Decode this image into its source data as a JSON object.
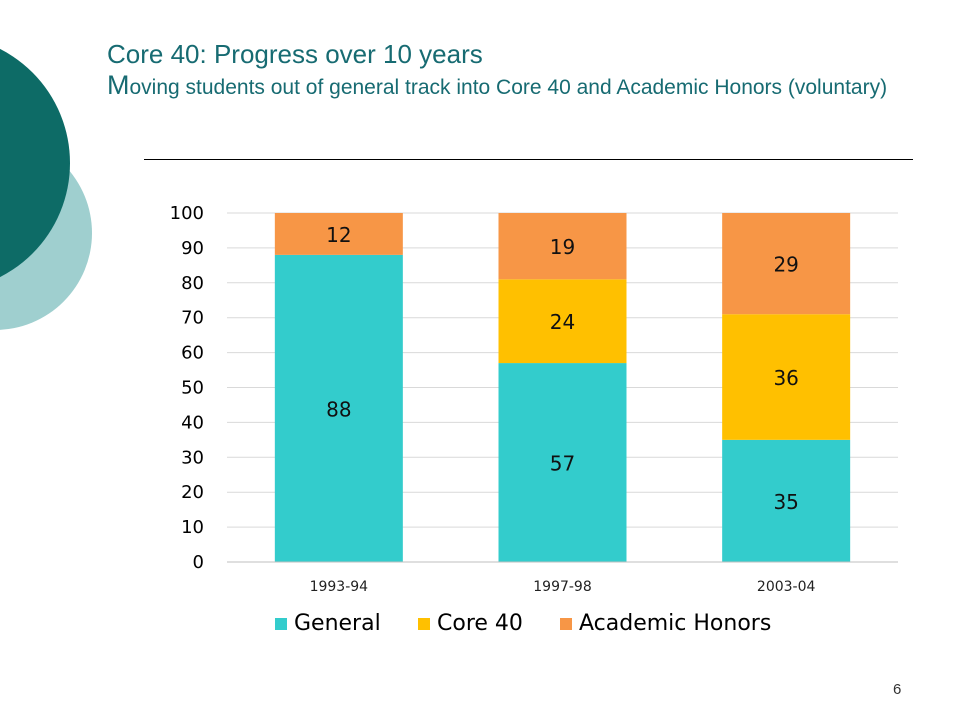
{
  "slide": {
    "title": "Core 40: Progress over 10 years",
    "subtitle_first": "M",
    "subtitle_rest": "oving students out of general track into Core 40 and Academic Honors  (voluntary)",
    "page_number": "6"
  },
  "colors": {
    "title": "#176b72",
    "decor_dark": "#0d6b66",
    "decor_light": "#9fcfcf"
  },
  "chart_data": {
    "type": "bar",
    "stacked": true,
    "categories": [
      "1993-94",
      "1997-98",
      "2003-04"
    ],
    "series": [
      {
        "name": "General",
        "color": "#33cccc",
        "values": [
          88,
          57,
          35
        ]
      },
      {
        "name": "Core 40",
        "color": "#ffc000",
        "values": [
          0,
          24,
          36
        ]
      },
      {
        "name": "Academic Honors",
        "color": "#f79646",
        "values": [
          12,
          19,
          29
        ]
      }
    ],
    "yticks": [
      "0",
      "10",
      "20",
      "30",
      "40",
      "50",
      "60",
      "70",
      "80",
      "90",
      "100"
    ],
    "ylim": [
      0,
      100
    ],
    "grid": true,
    "legend_position": "bottom",
    "title": "",
    "xlabel": "",
    "ylabel": ""
  }
}
